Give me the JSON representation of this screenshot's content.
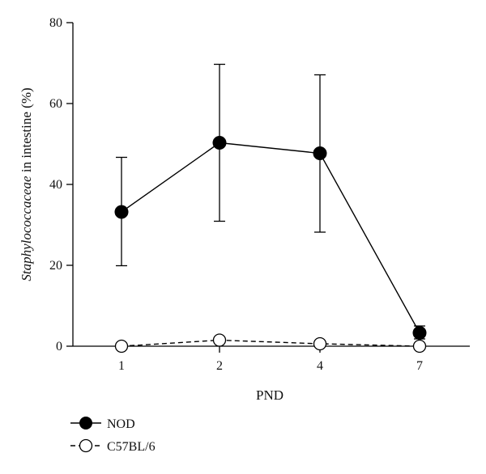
{
  "chart_data": {
    "type": "line",
    "xlabel": "PND",
    "ylabel": {
      "italic": "Staphylococcaceae",
      "rest": " in intestine (%)"
    },
    "categories": [
      "1",
      "2",
      "4",
      "7"
    ],
    "ylim": [
      0,
      80
    ],
    "yticks": [
      "0",
      "20",
      "40",
      "60",
      "80"
    ],
    "grid": false,
    "legend_position": "bottom-left",
    "series": [
      {
        "name": "NOD",
        "values": [
          33.2,
          50.3,
          47.7,
          3.3
        ],
        "error_low": [
          19.9,
          30.9,
          28.2,
          1.8
        ],
        "error_high": [
          46.7,
          69.7,
          67.1,
          5.0
        ],
        "marker": "filled-circle",
        "line": "solid",
        "color": "#000000"
      },
      {
        "name": "C57BL/6",
        "values": [
          0.0,
          1.5,
          0.6,
          0.0
        ],
        "marker": "open-circle",
        "line": "dashed",
        "color": "#000000"
      }
    ]
  }
}
